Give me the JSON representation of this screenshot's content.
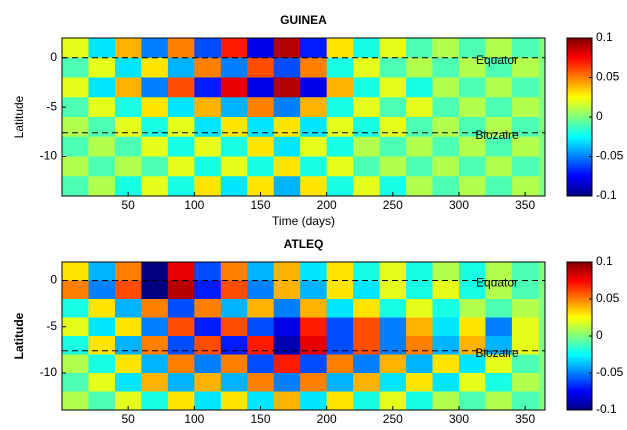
{
  "chart_data": [
    {
      "type": "heatmap",
      "title": "GUINEA",
      "xlabel": "Time (days)",
      "ylabel": "Latitude",
      "colormap": "jet",
      "xlim": [
        0,
        365
      ],
      "xticks": [
        50,
        100,
        150,
        200,
        250,
        300,
        350
      ],
      "ylim": [
        -14,
        2
      ],
      "yticks": [
        0,
        -5,
        -10
      ],
      "clim": [
        -0.1,
        0.1
      ],
      "cticks": [
        0.1,
        0.05,
        0,
        -0.05,
        -0.1
      ],
      "reference_lines": [
        {
          "label": "Equator",
          "value": 0
        },
        {
          "label": "Biozaire",
          "value": -7.6
        }
      ],
      "x": [
        10,
        30,
        50,
        70,
        90,
        110,
        130,
        150,
        170,
        190,
        210,
        230,
        250,
        270,
        290,
        310,
        330,
        350
      ],
      "y": [
        1,
        -1,
        -3,
        -5,
        -7,
        -9,
        -11,
        -13
      ],
      "z": [
        [
          0.02,
          -0.03,
          0.04,
          -0.05,
          0.05,
          -0.06,
          0.07,
          -0.08,
          0.09,
          -0.07,
          0.03,
          -0.02,
          0.02,
          -0.01,
          0.01,
          -0.01,
          0.01,
          -0.01
        ],
        [
          -0.01,
          0.02,
          -0.03,
          0.03,
          -0.04,
          0.05,
          -0.05,
          0.06,
          -0.06,
          0.05,
          -0.02,
          0.02,
          -0.01,
          0.01,
          -0.01,
          0.01,
          -0.01,
          0.01
        ],
        [
          0.02,
          -0.03,
          0.04,
          -0.05,
          0.06,
          -0.07,
          0.08,
          -0.08,
          0.09,
          -0.08,
          0.04,
          -0.02,
          0.02,
          -0.02,
          0.01,
          -0.01,
          0.01,
          -0.01
        ],
        [
          -0.01,
          0.02,
          -0.02,
          0.03,
          -0.03,
          0.04,
          -0.04,
          0.05,
          -0.05,
          0.04,
          -0.02,
          0.02,
          -0.01,
          0.02,
          -0.01,
          0.01,
          -0.01,
          0.01
        ],
        [
          0.01,
          -0.01,
          0.02,
          -0.02,
          0.02,
          -0.03,
          0.03,
          -0.03,
          0.03,
          -0.03,
          0.02,
          -0.02,
          0.02,
          -0.01,
          0.01,
          -0.01,
          0.01,
          -0.01
        ],
        [
          -0.01,
          0.01,
          -0.01,
          0.02,
          -0.02,
          0.02,
          -0.02,
          0.03,
          -0.03,
          0.02,
          -0.02,
          0.01,
          -0.01,
          0.01,
          -0.01,
          0.01,
          -0.01,
          0.01
        ],
        [
          0.01,
          -0.01,
          0.01,
          -0.01,
          0.02,
          -0.02,
          0.02,
          -0.02,
          0.03,
          -0.02,
          0.02,
          -0.01,
          0.01,
          -0.01,
          0.01,
          -0.01,
          0.01,
          -0.01
        ],
        [
          -0.01,
          0.01,
          -0.02,
          0.02,
          -0.02,
          0.03,
          -0.03,
          0.03,
          -0.04,
          0.03,
          -0.02,
          0.02,
          -0.02,
          0.01,
          -0.01,
          0.01,
          -0.01,
          0.01
        ]
      ]
    },
    {
      "type": "heatmap",
      "title": "ATLEQ",
      "ylabel": "Latitude",
      "colormap": "jet",
      "xlim": [
        0,
        365
      ],
      "xticks": [
        50,
        100,
        150,
        200,
        250,
        300,
        350
      ],
      "ylim": [
        -14,
        2
      ],
      "yticks": [
        0,
        -5,
        -10
      ],
      "clim": [
        -0.1,
        0.1
      ],
      "cticks": [
        0.1,
        0.05,
        0,
        -0.05,
        -0.1
      ],
      "reference_lines": [
        {
          "label": "Equator",
          "value": 0
        },
        {
          "label": "Biozaire",
          "value": -7.6
        }
      ],
      "x": [
        10,
        30,
        50,
        70,
        90,
        110,
        130,
        150,
        170,
        190,
        210,
        230,
        250,
        270,
        290,
        310,
        330,
        350
      ],
      "y": [
        1,
        -1,
        -3,
        -5,
        -7,
        -9,
        -11,
        -13
      ],
      "z": [
        [
          0.03,
          -0.04,
          0.05,
          -0.1,
          0.08,
          -0.06,
          0.05,
          -0.04,
          0.04,
          -0.03,
          0.03,
          -0.02,
          0.02,
          -0.02,
          0.01,
          -0.02,
          0.01,
          -0.01
        ],
        [
          0.05,
          -0.05,
          0.06,
          -0.1,
          0.09,
          -0.07,
          0.06,
          -0.05,
          0.04,
          -0.04,
          0.03,
          -0.03,
          0.02,
          -0.02,
          0.02,
          -0.02,
          0.01,
          -0.01
        ],
        [
          -0.02,
          0.03,
          -0.04,
          0.05,
          -0.06,
          0.05,
          -0.04,
          0.04,
          -0.05,
          0.04,
          -0.03,
          0.03,
          -0.02,
          0.02,
          -0.02,
          0.01,
          -0.01,
          0.01
        ],
        [
          0.02,
          -0.03,
          0.03,
          -0.05,
          0.06,
          -0.07,
          0.06,
          -0.06,
          -0.08,
          0.07,
          -0.06,
          0.06,
          -0.05,
          0.04,
          -0.03,
          0.03,
          -0.05,
          0.02
        ],
        [
          -0.02,
          0.03,
          -0.04,
          0.05,
          -0.06,
          0.06,
          -0.07,
          0.07,
          -0.09,
          0.08,
          -0.06,
          0.06,
          -0.05,
          0.05,
          -0.04,
          0.04,
          -0.04,
          0.02
        ],
        [
          0.01,
          -0.02,
          0.03,
          -0.04,
          0.05,
          -0.05,
          0.05,
          -0.06,
          0.07,
          -0.06,
          0.05,
          -0.05,
          0.04,
          -0.04,
          0.03,
          -0.03,
          0.02,
          -0.01
        ],
        [
          -0.01,
          0.02,
          -0.03,
          0.04,
          -0.04,
          0.04,
          -0.04,
          0.05,
          -0.05,
          0.05,
          -0.04,
          0.04,
          -0.03,
          0.03,
          -0.03,
          0.02,
          -0.02,
          0.01
        ],
        [
          0.01,
          -0.01,
          0.02,
          -0.02,
          0.03,
          -0.03,
          0.03,
          -0.03,
          0.04,
          -0.03,
          0.03,
          -0.02,
          0.02,
          -0.02,
          0.01,
          -0.01,
          0.01,
          -0.01
        ]
      ]
    }
  ]
}
